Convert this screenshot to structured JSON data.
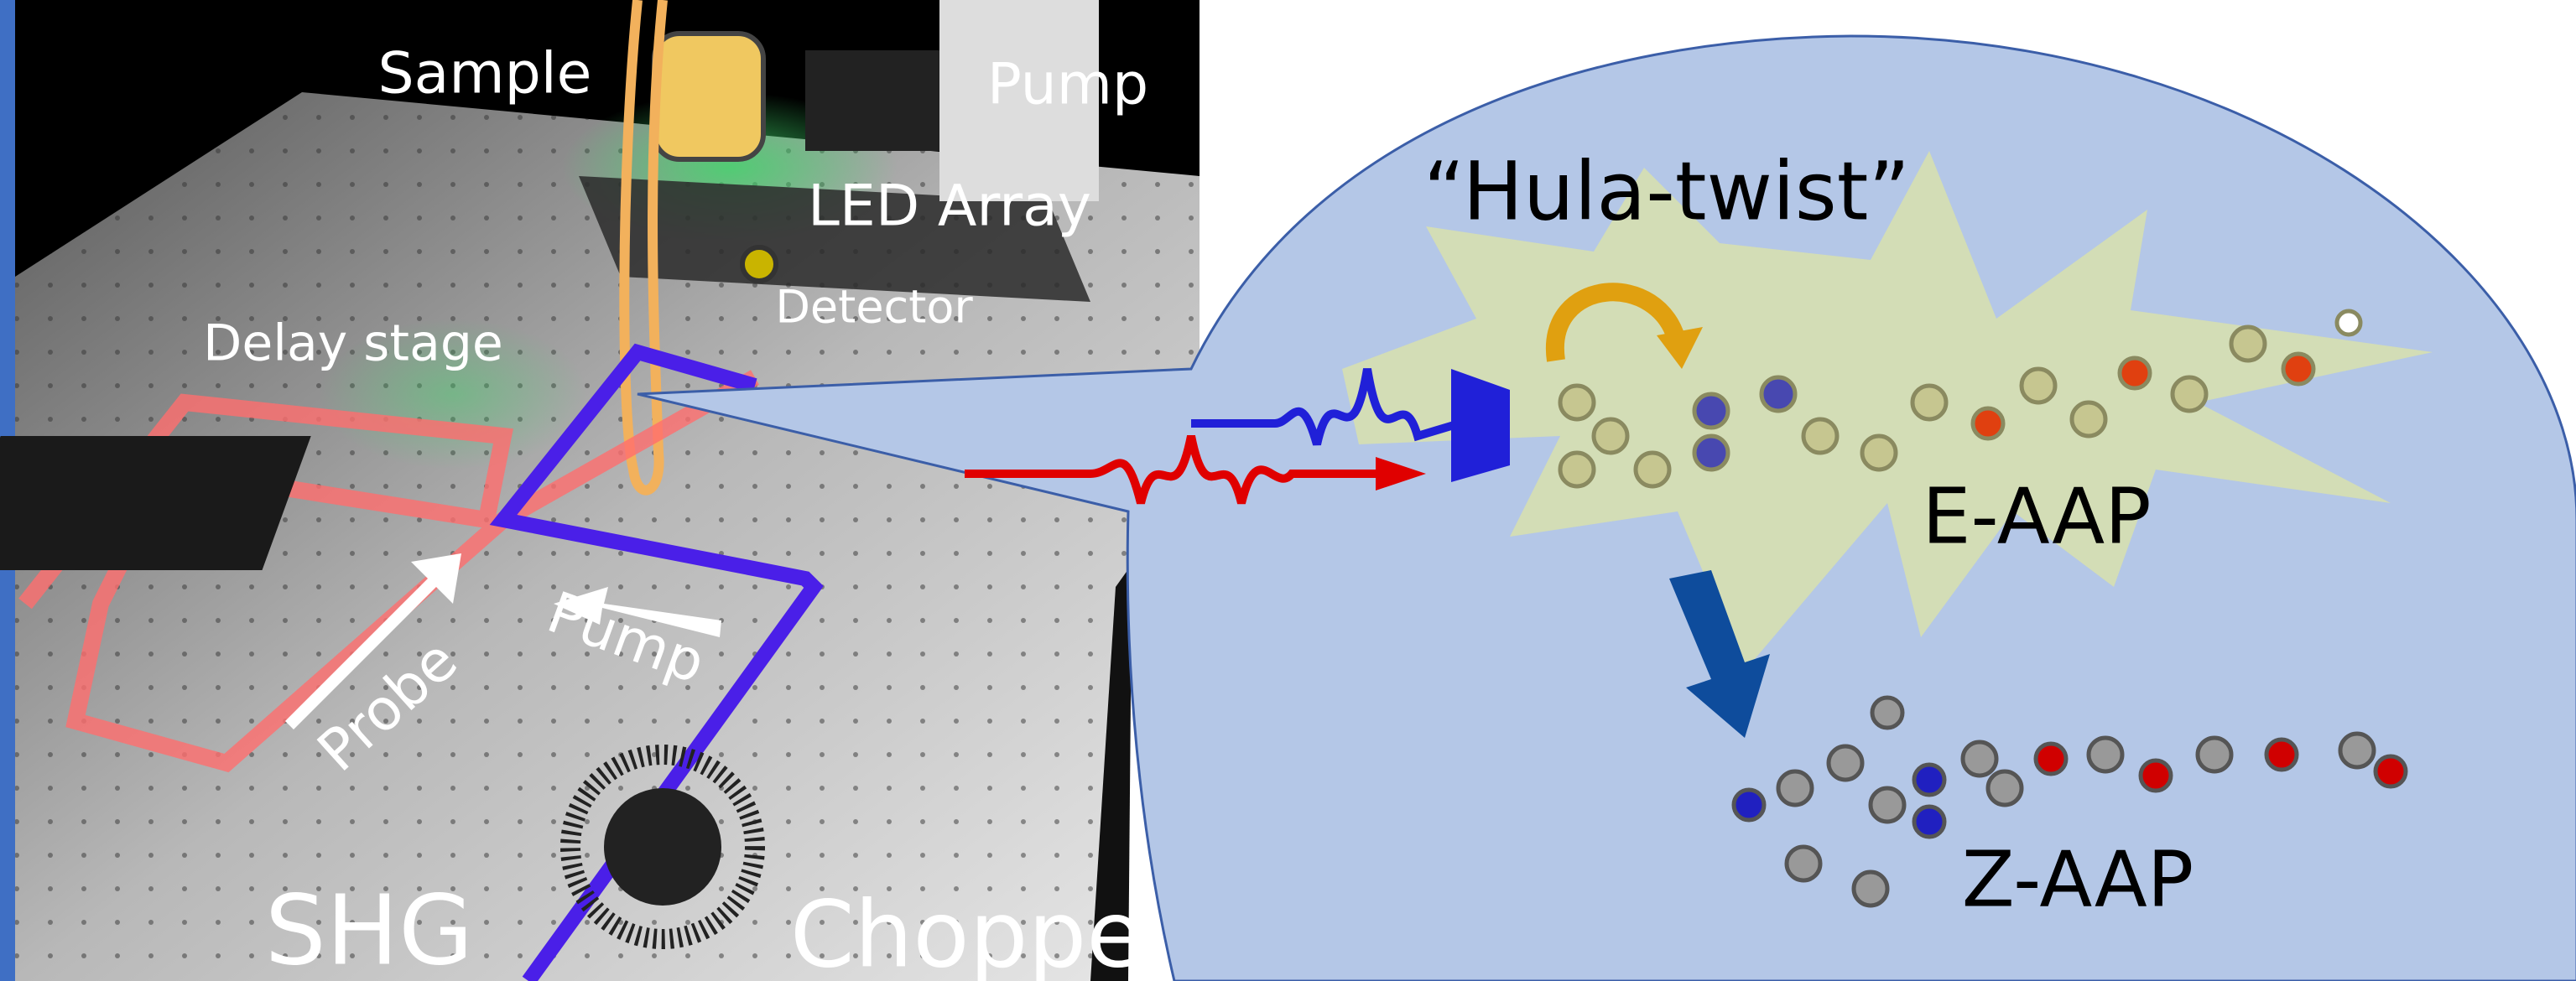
{
  "setup": {
    "labels": {
      "sample": "Sample",
      "pump_source": "Pump",
      "led_array": "LED Array",
      "detector": "Detector",
      "delay_stage": "Delay stage",
      "probe_beam": "Probe",
      "pump_beam": "Pump",
      "shg": "SHG",
      "chopper": "Chopper"
    }
  },
  "mechanism": {
    "title": "“Hula-twist”",
    "isomer_e": "E-AAP",
    "isomer_z": "Z-AAP"
  }
}
